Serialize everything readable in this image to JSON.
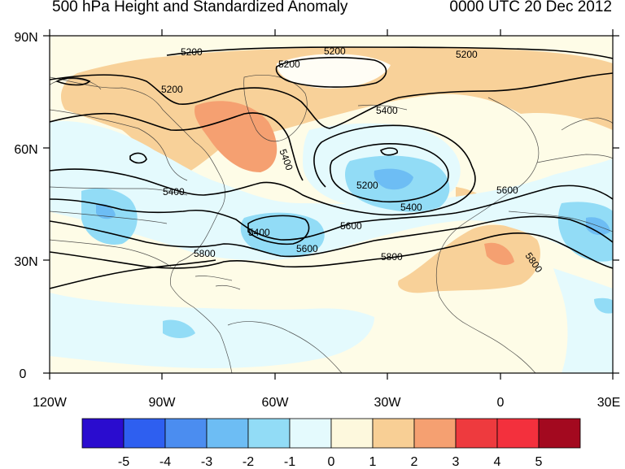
{
  "title": "500 hPa Height and Standardized Anomaly",
  "valid_time": "0000 UTC 20 Dec 2012",
  "lat_ticks": [
    "90N",
    "60N",
    "30N",
    "0"
  ],
  "lon_ticks": [
    "120W",
    "90W",
    "60W",
    "30W",
    "0",
    "30E"
  ],
  "colorbar": {
    "labels": [
      "-5",
      "-4",
      "-3",
      "-2",
      "-1",
      "0",
      "1",
      "2",
      "3",
      "4",
      "5"
    ],
    "colors": [
      "#2a0ccf",
      "#2e5ff0",
      "#4b8df0",
      "#6dbdf4",
      "#92dcf6",
      "#e4fafd",
      "#fdf8dd",
      "#f8cf95",
      "#f5a071",
      "#ee3a3e",
      "#f3303d",
      "#a3091f"
    ]
  },
  "contour_labels": [
    "5200",
    "5200",
    "5200",
    "5200",
    "5200",
    "5200",
    "5400",
    "5400",
    "5400",
    "5400",
    "5400",
    "5600",
    "5600",
    "5600",
    "5800",
    "5800",
    "5800"
  ]
}
